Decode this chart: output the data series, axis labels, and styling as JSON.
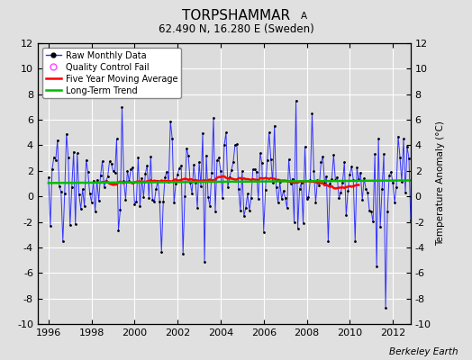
{
  "title": "TORPSHAMMAR",
  "title_sub": "A",
  "subtitle": "62.490 N, 16.280 E (Sweden)",
  "ylabel": "Temperature Anomaly (°C)",
  "xlabel_credit": "Berkeley Earth",
  "xlim": [
    1995.5,
    2012.83
  ],
  "ylim": [
    -10,
    12
  ],
  "yticks": [
    -10,
    -8,
    -6,
    -4,
    -2,
    0,
    2,
    4,
    6,
    8,
    10,
    12
  ],
  "xticks": [
    1996,
    1998,
    2000,
    2002,
    2004,
    2006,
    2008,
    2010,
    2012
  ],
  "raw_color": "#3333ff",
  "ma_color": "#ff0000",
  "trend_color": "#00bb00",
  "qc_color": "#ff44ff",
  "bg_color": "#e0e0e0",
  "plot_bg_color": "#dcdcdc",
  "grid_color": "#ffffff",
  "seed": 17
}
